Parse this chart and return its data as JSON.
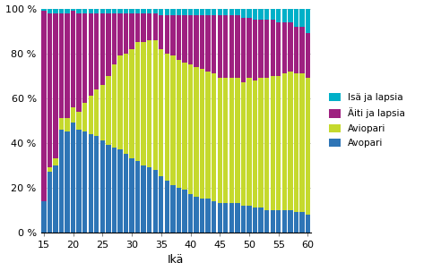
{
  "ages": [
    15,
    16,
    17,
    18,
    19,
    20,
    21,
    22,
    23,
    24,
    25,
    26,
    27,
    28,
    29,
    30,
    31,
    32,
    33,
    34,
    35,
    36,
    37,
    38,
    39,
    40,
    41,
    42,
    43,
    44,
    45,
    46,
    47,
    48,
    49,
    50,
    51,
    52,
    53,
    54,
    55,
    56,
    57,
    58,
    59,
    60
  ],
  "avopari": [
    14,
    27,
    30,
    46,
    45,
    49,
    46,
    45,
    44,
    43,
    41,
    39,
    38,
    37,
    35,
    33,
    32,
    30,
    29,
    28,
    25,
    23,
    21,
    20,
    19,
    17,
    16,
    15,
    15,
    14,
    13,
    13,
    13,
    13,
    12,
    12,
    11,
    11,
    10,
    10,
    10,
    10,
    10,
    9,
    9,
    8
  ],
  "aviopari": [
    0,
    2,
    3,
    5,
    6,
    7,
    8,
    13,
    17,
    21,
    25,
    31,
    37,
    42,
    45,
    49,
    53,
    55,
    57,
    58,
    57,
    57,
    58,
    57,
    57,
    58,
    58,
    58,
    57,
    57,
    56,
    56,
    56,
    56,
    55,
    57,
    57,
    58,
    59,
    60,
    60,
    61,
    62,
    62,
    62,
    61
  ],
  "aiti_ja_lapsia": [
    85,
    69,
    65,
    47,
    47,
    43,
    44,
    40,
    37,
    34,
    32,
    28,
    23,
    19,
    18,
    16,
    13,
    13,
    12,
    12,
    15,
    17,
    18,
    20,
    21,
    22,
    23,
    24,
    25,
    26,
    28,
    28,
    28,
    28,
    29,
    27,
    27,
    26,
    26,
    25,
    24,
    23,
    22,
    21,
    21,
    20
  ],
  "isa_ja_lapsia": [
    1,
    2,
    2,
    2,
    2,
    1,
    2,
    2,
    2,
    2,
    2,
    2,
    2,
    2,
    2,
    2,
    2,
    2,
    2,
    2,
    3,
    3,
    3,
    3,
    3,
    3,
    3,
    3,
    3,
    3,
    3,
    3,
    3,
    3,
    4,
    4,
    5,
    5,
    5,
    5,
    6,
    6,
    6,
    8,
    8,
    11
  ],
  "color_avopari": "#2E75B6",
  "color_aviopari": "#C5D92D",
  "color_aiti": "#9E2080",
  "color_isa": "#00B0C8",
  "xlabel": "Ikä",
  "ytick_labels": [
    "0 %",
    "20 %",
    "40 %",
    "60 %",
    "80 %",
    "100 %"
  ],
  "xtick_positions": [
    15,
    20,
    25,
    30,
    35,
    40,
    45,
    50,
    55,
    60
  ],
  "background_color": "#ffffff",
  "grid_color": "#c0c0c0"
}
